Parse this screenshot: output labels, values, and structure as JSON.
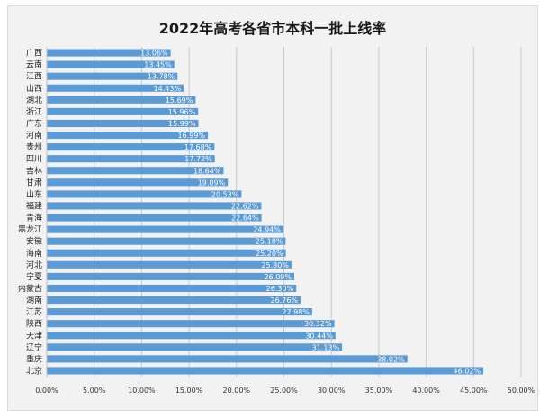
{
  "chart_data": {
    "type": "bar",
    "orientation": "horizontal",
    "title": "2022年高考各省市本科一批上线率",
    "xlabel": "",
    "ylabel": "",
    "xlim": [
      0,
      50
    ],
    "x_ticks": [
      "0.00%",
      "5.00%",
      "10.00%",
      "15.00%",
      "20.00%",
      "25.00%",
      "30.00%",
      "35.00%",
      "40.00%",
      "45.00%",
      "50.00%"
    ],
    "grid": "vertical",
    "legend": "none",
    "bar_color": "#5b9bd5",
    "categories": [
      "广西",
      "云南",
      "江西",
      "山西",
      "湖北",
      "浙江",
      "广东",
      "河南",
      "贵州",
      "四川",
      "吉林",
      "甘肃",
      "山东",
      "福建",
      "青海",
      "黑龙江",
      "安徽",
      "海南",
      "河北",
      "宁夏",
      "内蒙古",
      "湖南",
      "江苏",
      "陕西",
      "天津",
      "辽宁",
      "重庆",
      "北京"
    ],
    "values": [
      13.06,
      13.45,
      13.78,
      14.43,
      15.69,
      15.96,
      15.99,
      16.99,
      17.68,
      17.72,
      18.64,
      19.09,
      20.53,
      22.62,
      22.64,
      24.94,
      25.18,
      25.2,
      25.8,
      26.09,
      26.3,
      26.76,
      27.98,
      30.32,
      30.44,
      31.13,
      38.02,
      46.02
    ],
    "value_labels": [
      "13.06%",
      "13.45%",
      "13.78%",
      "14.43%",
      "15.69%",
      "15.96%",
      "15.99%",
      "16.99%",
      "17.68%",
      "17.72%",
      "18.64%",
      "19.09%",
      "20.53%",
      "22.62%",
      "22.64%",
      "24.94%",
      "25.18%",
      "25.20%",
      "25.80%",
      "26.09%",
      "26.30%",
      "26.76%",
      "27.98%",
      "30.32%",
      "30.44%",
      "31.13%",
      "38.02%",
      "46.02%"
    ]
  }
}
